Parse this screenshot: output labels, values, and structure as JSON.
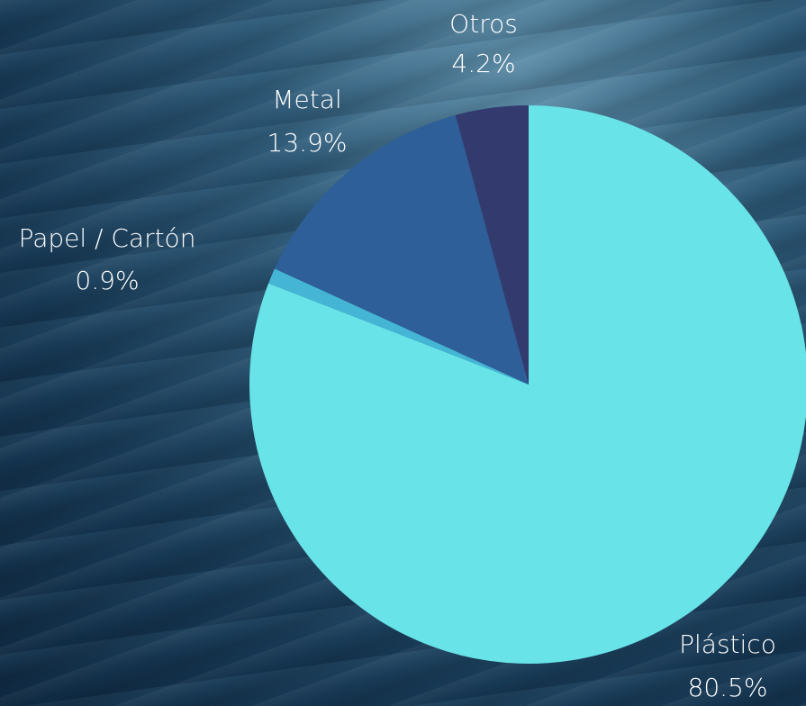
{
  "chart_data": {
    "type": "pie",
    "categories": [
      "Plástico",
      "Papel / Cartón",
      "Metal",
      "Otros"
    ],
    "values": [
      80.5,
      0.9,
      13.9,
      4.2
    ],
    "value_labels": [
      "80.5%",
      "0.9%",
      "13.9%",
      "4.2%"
    ],
    "colors": [
      "#68e3e8",
      "#45b5d6",
      "#2e5f98",
      "#333a6e"
    ]
  }
}
